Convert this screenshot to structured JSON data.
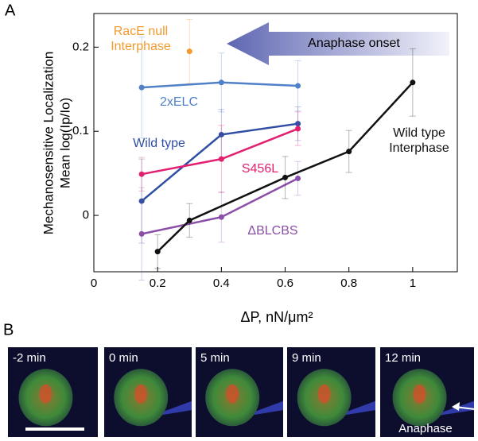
{
  "panel_a_label": "A",
  "panel_b_label": "B",
  "chart_data": {
    "type": "line",
    "ylabel": [
      "Mechanosensitive Localization",
      "Mean log(Ip/Io)"
    ],
    "xlabel": "ΔP, nN/μm²",
    "annotation": "Anaphase onset",
    "xlim": [
      0,
      1.14
    ],
    "ylim": [
      -0.067,
      0.24
    ],
    "xticks": [
      0,
      0.2,
      0.4,
      0.6,
      0.8,
      1
    ],
    "yticks": [
      0,
      0.1,
      0.2
    ],
    "series": [
      {
        "name": "RacE null Interphase",
        "color": "#f29a2e",
        "x": [
          0.3
        ],
        "values": [
          0.195
        ],
        "errors": [
          0.038
        ]
      },
      {
        "name": "2xELC",
        "color": "#4f80c8",
        "x": [
          0.15,
          0.4,
          0.64
        ],
        "values": [
          0.152,
          0.158,
          0.154
        ],
        "errors": [
          0.06,
          0.035,
          0.03
        ]
      },
      {
        "name": "Wild type",
        "color": "#2f4ea3",
        "x": [
          0.15,
          0.4,
          0.64
        ],
        "values": [
          0.017,
          0.096,
          0.109
        ],
        "errors": [
          0.05,
          0.03,
          0.02
        ]
      },
      {
        "name": "S456L",
        "color": "#e3206f",
        "x": [
          0.15,
          0.4,
          0.64
        ],
        "values": [
          0.049,
          0.067,
          0.103
        ],
        "errors": [
          0.02,
          0.04,
          0.02
        ]
      },
      {
        "name": "ΔBLCBS",
        "color": "#8a4fa8",
        "x": [
          0.15,
          0.4,
          0.64
        ],
        "values": [
          -0.022,
          -0.002,
          0.044
        ],
        "errors": [
          0.055,
          0.03,
          0.02
        ]
      },
      {
        "name": "Wild type Interphase",
        "color": "#111111",
        "x": [
          0.2,
          0.3,
          0.6,
          0.8,
          1
        ],
        "values": [
          -0.043,
          -0.006,
          0.045,
          0.076,
          0.158
        ],
        "errors": [
          0.02,
          0.02,
          0.025,
          0.025,
          0.04
        ]
      }
    ]
  },
  "images": {
    "labels": [
      "-2 min",
      "0 min",
      "5 min",
      "9 min",
      "12 min"
    ],
    "annotation": "Anaphase"
  }
}
